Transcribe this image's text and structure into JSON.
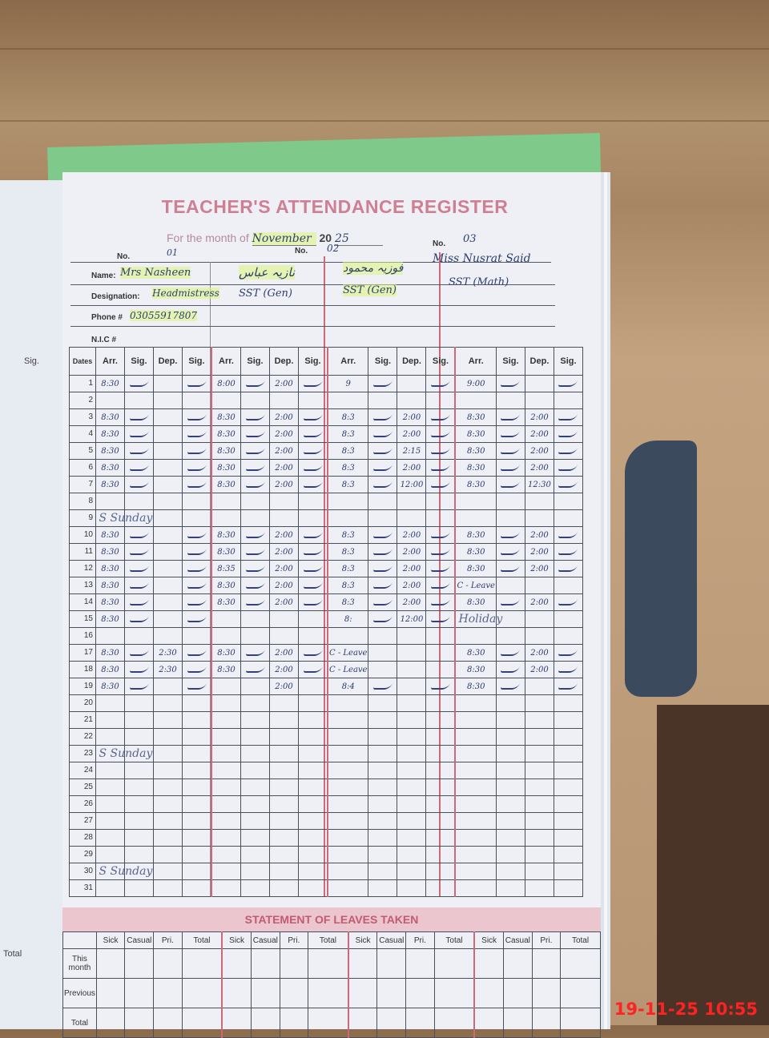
{
  "register": {
    "title": "TEACHER'S ATTENDANCE REGISTER",
    "month_label": "For the month of",
    "month_value": "November",
    "year_prefix": "20",
    "year_value": "25",
    "labels": {
      "no": "No.",
      "name": "Name:",
      "designation": "Designation:",
      "phone": "Phone #",
      "nic": "N.I.C #",
      "dates": "Dates"
    },
    "teachers": [
      {
        "no": "01",
        "name": "Mrs Nasheen",
        "designation": "Headmistress",
        "phone": "03055917807"
      },
      {
        "no": "",
        "name": "نازیہ عباس",
        "designation": "SST (Gen)"
      },
      {
        "no": "02",
        "name": "فوزیہ محمود",
        "designation": "SST (Gen)"
      },
      {
        "no": "03",
        "name": "Miss Nusrat Said",
        "designation": "SST (Math)"
      }
    ],
    "column_headers": [
      "Arr.",
      "Sig.",
      "Dep.",
      "Sig."
    ],
    "rows": [
      {
        "d": "1",
        "v": [
          "8:30",
          "",
          "8:00",
          "2:00",
          "9",
          "",
          "9:00",
          ""
        ]
      },
      {
        "d": "2",
        "v": [
          "",
          "",
          "",
          "",
          "",
          "",
          "",
          ""
        ]
      },
      {
        "d": "3",
        "v": [
          "8:30",
          "",
          "8:30",
          "2:00",
          "8:3",
          "2:00",
          "8:30",
          "2:00"
        ]
      },
      {
        "d": "4",
        "v": [
          "8:30",
          "",
          "8:30",
          "2:00",
          "8:3",
          "2:00",
          "8:30",
          "2:00"
        ]
      },
      {
        "d": "5",
        "v": [
          "8:30",
          "",
          "8:30",
          "2:00",
          "8:3",
          "2:15",
          "8:30",
          "2:00"
        ]
      },
      {
        "d": "6",
        "v": [
          "8:30",
          "",
          "8:30",
          "2:00",
          "8:3",
          "2:00",
          "8:30",
          "2:00"
        ]
      },
      {
        "d": "7",
        "v": [
          "8:30",
          "",
          "8:30",
          "2:00",
          "8:3",
          "12:00",
          "8:30",
          "12:30"
        ]
      },
      {
        "d": "8",
        "v": [
          "",
          "",
          "",
          "",
          "",
          "",
          "",
          ""
        ]
      },
      {
        "d": "9",
        "v": [
          "",
          "",
          "",
          "",
          "",
          "",
          "",
          ""
        ]
      },
      {
        "d": "10",
        "v": [
          "8:30",
          "",
          "8:30",
          "2:00",
          "8:3",
          "2:00",
          "8:30",
          "2:00"
        ]
      },
      {
        "d": "11",
        "v": [
          "8:30",
          "",
          "8:30",
          "2:00",
          "8:3",
          "2:00",
          "8:30",
          "2:00"
        ]
      },
      {
        "d": "12",
        "v": [
          "8:30",
          "",
          "8:35",
          "2:00",
          "8:3",
          "2:00",
          "8:30",
          "2:00"
        ]
      },
      {
        "d": "13",
        "v": [
          "8:30",
          "",
          "8:30",
          "2:00",
          "8:3",
          "2:00",
          "C - Leave",
          ""
        ]
      },
      {
        "d": "14",
        "v": [
          "8:30",
          "",
          "8:30",
          "2:00",
          "8:3",
          "2:00",
          "8:30",
          "2:00"
        ]
      },
      {
        "d": "15",
        "v": [
          "8:30",
          "",
          "",
          "",
          "8:",
          "12:00",
          "",
          ""
        ]
      },
      {
        "d": "16",
        "v": [
          "",
          "",
          "",
          "",
          "",
          "",
          "",
          ""
        ]
      },
      {
        "d": "17",
        "v": [
          "8:30",
          "2:30",
          "8:30",
          "2:00",
          "C - Leave",
          "",
          "8:30",
          "2:00"
        ]
      },
      {
        "d": "18",
        "v": [
          "8:30",
          "2:30",
          "8:30",
          "2:00",
          "C - Leave",
          "",
          "8:30",
          "2:00"
        ]
      },
      {
        "d": "19",
        "v": [
          "8:30",
          "",
          "",
          "2:00",
          "8:4",
          "",
          "8:30",
          ""
        ]
      },
      {
        "d": "20",
        "v": [
          "",
          "",
          "",
          "",
          "",
          "",
          "",
          ""
        ]
      },
      {
        "d": "21",
        "v": [
          "",
          "",
          "",
          "",
          "",
          "",
          "",
          ""
        ]
      },
      {
        "d": "22",
        "v": [
          "",
          "",
          "",
          "",
          "",
          "",
          "",
          ""
        ]
      },
      {
        "d": "23",
        "v": [
          "",
          "",
          "",
          "",
          "",
          "",
          "",
          ""
        ]
      },
      {
        "d": "24",
        "v": [
          "",
          "",
          "",
          "",
          "",
          "",
          "",
          ""
        ]
      },
      {
        "d": "25",
        "v": [
          "",
          "",
          "",
          "",
          "",
          "",
          "",
          ""
        ]
      },
      {
        "d": "26",
        "v": [
          "",
          "",
          "",
          "",
          "",
          "",
          "",
          ""
        ]
      },
      {
        "d": "27",
        "v": [
          "",
          "",
          "",
          "",
          "",
          "",
          "",
          ""
        ]
      },
      {
        "d": "28",
        "v": [
          "",
          "",
          "",
          "",
          "",
          "",
          "",
          ""
        ]
      },
      {
        "d": "29",
        "v": [
          "",
          "",
          "",
          "",
          "",
          "",
          "",
          ""
        ]
      },
      {
        "d": "30",
        "v": [
          "",
          "",
          "",
          "",
          "",
          "",
          "",
          ""
        ]
      },
      {
        "d": "31",
        "v": [
          "",
          "",
          "",
          "",
          "",
          "",
          "",
          ""
        ]
      }
    ],
    "notes": [
      {
        "row": "9",
        "text": "S        Sunday"
      },
      {
        "row": "15",
        "text": "Holiday"
      },
      {
        "row": "23",
        "text": "S        Sunday"
      },
      {
        "row": "30",
        "text": "S        Sunday"
      }
    ]
  },
  "leaves": {
    "title": "STATEMENT OF LEAVES TAKEN",
    "headers": [
      "Sick",
      "Casual",
      "Pri.",
      "Total"
    ],
    "row_labels": [
      "This month",
      "Previous",
      "Total"
    ]
  },
  "left_page": {
    "header": "Sig.",
    "total_label": "Total"
  },
  "timestamp": "19-11-25  10:55",
  "colors": {
    "title": "#cf7f92",
    "ink": "#2b3a6b",
    "timestamp": "#ff2222",
    "highlight": "#dcf578"
  }
}
